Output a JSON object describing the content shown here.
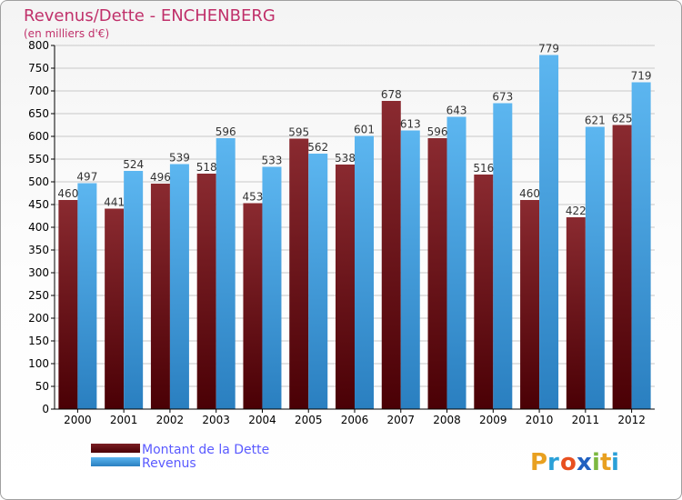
{
  "chart_data": {
    "type": "bar",
    "title": "Revenus/Dette - ENCHENBERG",
    "subtitle": "(en milliers d'€)",
    "categories": [
      "2000",
      "2001",
      "2002",
      "2003",
      "2004",
      "2005",
      "2006",
      "2007",
      "2008",
      "2009",
      "2010",
      "2011",
      "2012"
    ],
    "series": [
      {
        "name": "Montant de la Dette",
        "values": [
          460,
          441,
          496,
          518,
          453,
          595,
          538,
          678,
          596,
          516,
          460,
          422,
          625
        ]
      },
      {
        "name": "Revenus",
        "values": [
          497,
          524,
          539,
          596,
          533,
          562,
          601,
          613,
          643,
          673,
          779,
          621,
          719
        ]
      }
    ],
    "ylim": [
      0,
      800
    ],
    "yticks": [
      0,
      50,
      100,
      150,
      200,
      250,
      300,
      350,
      400,
      450,
      500,
      550,
      600,
      650,
      700,
      750,
      800
    ],
    "grid": true,
    "legend_position": "bottom-left",
    "colors": {
      "title": "#c0306a",
      "legend_text": "#5a5aff",
      "dette": "#7b1f24",
      "dette_dark": "#4a0005",
      "revenus": "#56aee8",
      "revenus_dark": "#2a7fc0",
      "grid": "#c8c8c8",
      "axis": "#000000"
    }
  },
  "logo": {
    "text": "Proxiti"
  }
}
